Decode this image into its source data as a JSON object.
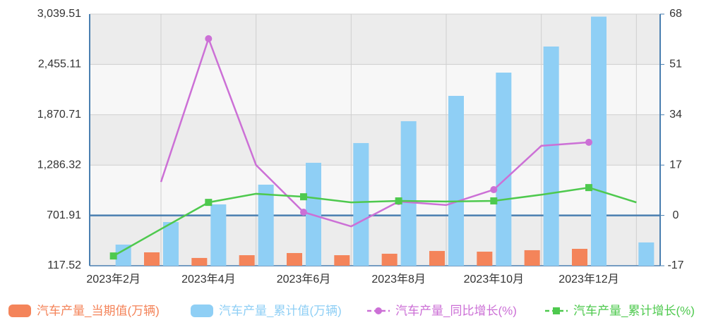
{
  "chart_data": {
    "type": "bar",
    "categories": [
      "2023年2月",
      null,
      "2023年4月",
      null,
      "2023年6月",
      null,
      "2023年8月",
      null,
      "2023年10月",
      null,
      "2023年12月",
      null
    ],
    "series": [
      {
        "name": "汽车产量_当期值(万辆)",
        "type": "bar",
        "color": "#f4845a",
        "values": [
          null,
          273,
          208,
          240,
          265,
          240,
          257,
          289,
          281,
          298,
          314,
          null
        ]
      },
      {
        "name": "汽车产量_累计值(万辆)",
        "type": "bar",
        "color": "#8fcff5",
        "values": [
          363,
          625,
          830,
          1059,
          1313,
          1542,
          1796,
          2090,
          2360,
          2663,
          3010,
          388
        ]
      },
      {
        "name": "汽车产量_同比增长(%)",
        "type": "line",
        "marker": "circle",
        "axis": "y2",
        "color": "#cc70d6",
        "values": [
          null,
          11.3,
          59.7,
          17.0,
          1.1,
          -3.7,
          4.7,
          3.5,
          8.7,
          23.5,
          24.7,
          null
        ]
      },
      {
        "name": "汽车产量_累计增长(%)",
        "type": "line",
        "marker": "square",
        "axis": "y2",
        "color": "#4ec94e",
        "values": [
          -13.7,
          -4.6,
          4.4,
          7.3,
          6.3,
          4.4,
          4.9,
          4.7,
          4.9,
          7.0,
          9.4,
          4.4
        ]
      }
    ],
    "ylim": [
      117.52,
      3039.51
    ],
    "yticks": [
      117.52,
      701.91,
      {
        "value": 1286.32,
        "label": "1,286.32"
      },
      {
        "value": 1870.71,
        "label": "1,870.71"
      },
      {
        "value": 2455.11,
        "label": "2,455.11"
      },
      {
        "value": 3039.51,
        "label": "3,039.51"
      }
    ],
    "y2lim": [
      -17,
      68
    ],
    "y2ticks": [
      -17,
      0,
      17,
      34,
      51,
      68
    ],
    "legend": "bottom",
    "grid": true
  }
}
